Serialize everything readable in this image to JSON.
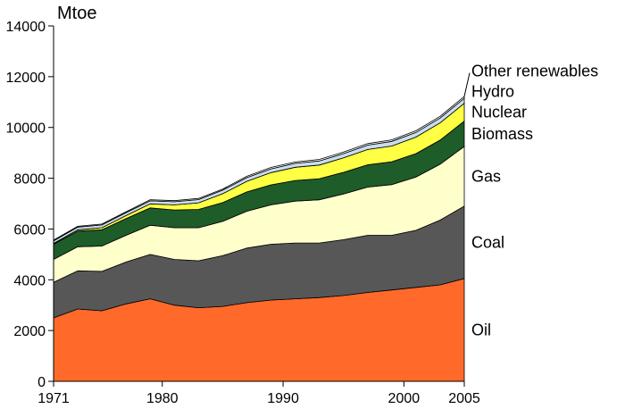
{
  "chart_data": {
    "type": "area",
    "stacked": true,
    "ylabel": "Mtoe",
    "ylim": [
      0,
      14000
    ],
    "yticks": [
      0,
      2000,
      4000,
      6000,
      8000,
      10000,
      12000,
      14000
    ],
    "xlim": [
      1971,
      2005
    ],
    "xticks": [
      1971,
      1980,
      1990,
      2000,
      2005
    ],
    "legend_placement": "right-inline",
    "grid": false,
    "x": [
      1971,
      1973,
      1975,
      1977,
      1979,
      1981,
      1983,
      1985,
      1987,
      1989,
      1991,
      1993,
      1995,
      1997,
      1999,
      2001,
      2003,
      2005
    ],
    "series": [
      {
        "name": "Oil",
        "color": "#ff6a2a",
        "values": [
          2500,
          2850,
          2780,
          3050,
          3250,
          3000,
          2900,
          2950,
          3100,
          3200,
          3250,
          3300,
          3380,
          3500,
          3600,
          3700,
          3800,
          4050
        ]
      },
      {
        "name": "Coal",
        "color": "#575757",
        "values": [
          1400,
          1500,
          1550,
          1650,
          1750,
          1800,
          1850,
          2000,
          2150,
          2200,
          2200,
          2150,
          2200,
          2250,
          2150,
          2250,
          2550,
          2850
        ]
      },
      {
        "name": "Gas",
        "color": "#ffffcc",
        "values": [
          900,
          950,
          1000,
          1050,
          1150,
          1250,
          1300,
          1350,
          1450,
          1550,
          1650,
          1700,
          1800,
          1900,
          2000,
          2100,
          2200,
          2350
        ]
      },
      {
        "name": "Biomass",
        "color": "#1e5c2a",
        "values": [
          600,
          620,
          640,
          660,
          680,
          700,
          720,
          740,
          760,
          790,
          810,
          830,
          850,
          880,
          900,
          920,
          950,
          1000
        ]
      },
      {
        "name": "Nuclear",
        "color": "#ffff44",
        "values": [
          30,
          50,
          80,
          120,
          160,
          200,
          260,
          350,
          420,
          480,
          520,
          540,
          570,
          600,
          620,
          650,
          680,
          700
        ]
      },
      {
        "name": "Hydro",
        "color": "#c8ddf0",
        "values": [
          100,
          105,
          110,
          115,
          120,
          125,
          130,
          140,
          145,
          150,
          155,
          160,
          170,
          175,
          180,
          185,
          190,
          200
        ]
      },
      {
        "name": "Other renewables",
        "color": "#ffffff",
        "values": [
          30,
          30,
          35,
          35,
          40,
          40,
          45,
          45,
          50,
          55,
          55,
          60,
          60,
          60,
          62,
          64,
          68,
          70
        ]
      }
    ]
  }
}
